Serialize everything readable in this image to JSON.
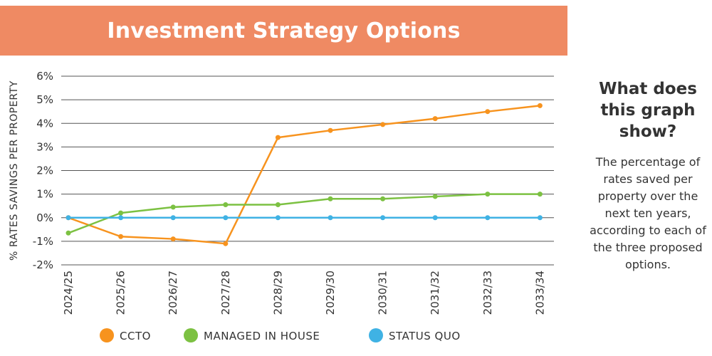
{
  "chart_data": {
    "type": "line",
    "title": "Investment Strategy Options",
    "xlabel": "",
    "ylabel": "% RATES SAVINGS PER PROPERTY",
    "categories": [
      "2024/25",
      "2025/26",
      "2026/27",
      "2027/28",
      "2028/29",
      "2029/30",
      "2030/31",
      "2031/32",
      "2032/33",
      "2033/34"
    ],
    "ylim": [
      -2,
      6
    ],
    "yticks": [
      -2,
      -1,
      0,
      1,
      2,
      3,
      4,
      5,
      6
    ],
    "ytick_labels": [
      "-2%",
      "-1%",
      "0%",
      "1%",
      "2%",
      "3%",
      "4%",
      "5%",
      "6%"
    ],
    "grid": true,
    "legend_position": "bottom",
    "series": [
      {
        "name": "CCTO",
        "color": "#f7931e",
        "values": [
          0.0,
          -0.8,
          -0.9,
          -1.1,
          3.4,
          3.7,
          3.95,
          4.2,
          4.5,
          4.75
        ]
      },
      {
        "name": "MANAGED IN HOUSE",
        "color": "#7cc142",
        "values": [
          -0.65,
          0.2,
          0.45,
          0.55,
          0.55,
          0.8,
          0.8,
          0.9,
          1.0,
          1.0
        ]
      },
      {
        "name": "STATUS QUO",
        "color": "#3fb2e4",
        "values": [
          0,
          0,
          0,
          0,
          0,
          0,
          0,
          0,
          0,
          0
        ]
      }
    ]
  },
  "side_panel": {
    "heading": "What does this graph show?",
    "body": "The percentage of rates saved per property over the next ten years, according to each of the three proposed options."
  },
  "colors": {
    "banner": "#ef8a63",
    "grid": "#555555"
  }
}
